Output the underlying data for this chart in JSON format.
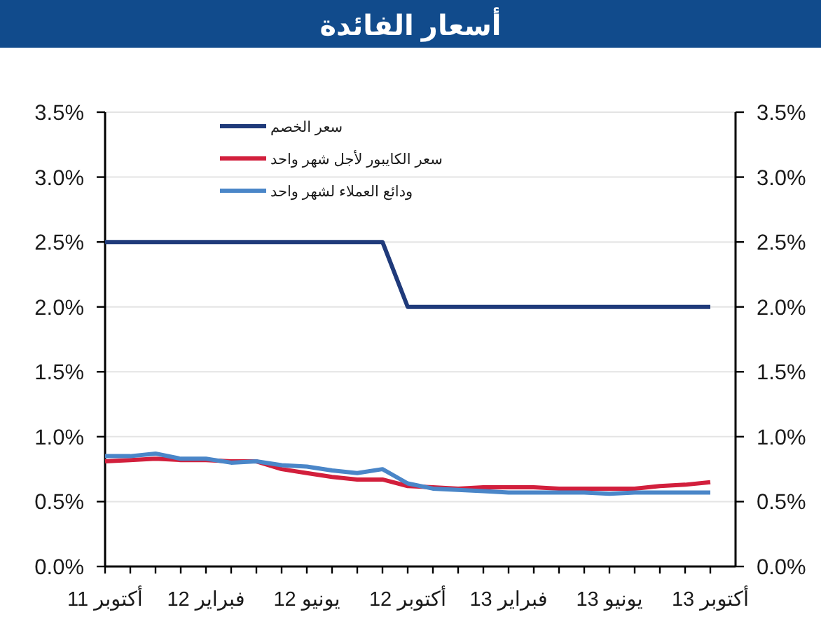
{
  "chart_data": {
    "type": "line",
    "title": "أسعار الفائدة",
    "x": [
      "2011-10",
      "2011-11",
      "2011-12",
      "2012-01",
      "2012-02",
      "2012-03",
      "2012-04",
      "2012-05",
      "2012-06",
      "2012-07",
      "2012-08",
      "2012-09",
      "2012-10",
      "2012-11",
      "2012-12",
      "2013-01",
      "2013-02",
      "2013-03",
      "2013-04",
      "2013-05",
      "2013-06",
      "2013-07",
      "2013-08",
      "2013-09",
      "2013-10"
    ],
    "xlim": [
      "2011-10",
      "2013-11"
    ],
    "xticks": [
      {
        "value": "2011-10",
        "label": "أكتوبر 11"
      },
      {
        "value": "2011-11",
        "label": null
      },
      {
        "value": "2011-12",
        "label": null
      },
      {
        "value": "2012-01",
        "label": null
      },
      {
        "value": "2012-02",
        "label": "فبراير 12"
      },
      {
        "value": "2012-03",
        "label": null
      },
      {
        "value": "2012-04",
        "label": null
      },
      {
        "value": "2012-05",
        "label": null
      },
      {
        "value": "2012-06",
        "label": "يونيو 12"
      },
      {
        "value": "2012-07",
        "label": null
      },
      {
        "value": "2012-08",
        "label": null
      },
      {
        "value": "2012-09",
        "label": null
      },
      {
        "value": "2012-10",
        "label": "أكتوبر 12"
      },
      {
        "value": "2012-11",
        "label": null
      },
      {
        "value": "2012-12",
        "label": null
      },
      {
        "value": "2013-01",
        "label": null
      },
      {
        "value": "2013-02",
        "label": "فبراير 13"
      },
      {
        "value": "2013-03",
        "label": null
      },
      {
        "value": "2013-04",
        "label": null
      },
      {
        "value": "2013-05",
        "label": null
      },
      {
        "value": "2013-06",
        "label": "يونيو 13"
      },
      {
        "value": "2013-07",
        "label": null
      },
      {
        "value": "2013-08",
        "label": null
      },
      {
        "value": "2013-09",
        "label": null
      },
      {
        "value": "2013-10",
        "label": "أكتوبر 13"
      }
    ],
    "ylim": [
      0,
      3.5
    ],
    "yticks": [
      {
        "value": 0,
        "label": "0.0%"
      },
      {
        "value": 0.5,
        "label": "0.5%"
      },
      {
        "value": 1,
        "label": "1.0%"
      },
      {
        "value": 1.5,
        "label": "1.5%"
      },
      {
        "value": 2,
        "label": "2.0%"
      },
      {
        "value": 2.5,
        "label": "2.5%"
      },
      {
        "value": 3,
        "label": "3.0%"
      },
      {
        "value": 3.5,
        "label": "3.5%"
      }
    ],
    "y2lim": [
      0,
      3.5
    ],
    "y2ticks": [
      {
        "value": 0,
        "label": "0.0%"
      },
      {
        "value": 0.5,
        "label": "0.5%"
      },
      {
        "value": 1,
        "label": "1.0%"
      },
      {
        "value": 1.5,
        "label": "1.5%"
      },
      {
        "value": 2,
        "label": "2.0%"
      },
      {
        "value": 2.5,
        "label": "2.5%"
      },
      {
        "value": 3,
        "label": "3.0%"
      },
      {
        "value": 3.5,
        "label": "3.5%"
      }
    ],
    "grid": "y",
    "legend": "top left",
    "series": [
      {
        "name": "سعر الخصم",
        "color": "#1f3a7a",
        "values": [
          2.5,
          2.5,
          2.5,
          2.5,
          2.5,
          2.5,
          2.5,
          2.5,
          2.5,
          2.5,
          2.5,
          2.5,
          2.0,
          2.0,
          2.0,
          2.0,
          2.0,
          2.0,
          2.0,
          2.0,
          2.0,
          2.0,
          2.0,
          2.0,
          2.0
        ]
      },
      {
        "name": "سعر الكايبور لأجل شهر واحد",
        "color": "#d21f3c",
        "values": [
          0.81,
          0.82,
          0.83,
          0.82,
          0.82,
          0.81,
          0.81,
          0.75,
          0.72,
          0.69,
          0.67,
          0.67,
          0.62,
          0.61,
          0.6,
          0.61,
          0.61,
          0.61,
          0.6,
          0.6,
          0.6,
          0.6,
          0.62,
          0.63,
          0.65
        ]
      },
      {
        "name": "ودائع العملاء لشهر واحد",
        "color": "#4a86c8",
        "values": [
          0.85,
          0.85,
          0.87,
          0.83,
          0.83,
          0.8,
          0.81,
          0.78,
          0.77,
          0.74,
          0.72,
          0.75,
          0.64,
          0.6,
          0.59,
          0.58,
          0.57,
          0.57,
          0.57,
          0.57,
          0.56,
          0.57,
          0.57,
          0.57,
          0.57
        ]
      }
    ]
  }
}
